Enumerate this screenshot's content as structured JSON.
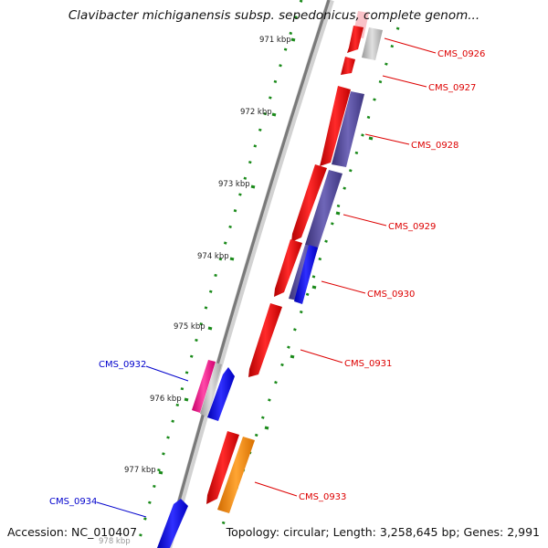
{
  "title": "Clavibacter michiganensis subsp. sepedonicus, complete genom...",
  "accession_text": "Accession: NC_010407",
  "topology_text": "Topology: circular; Length: 3,258,645 bp; Genes: 2,991",
  "colors": {
    "backbone": "#888888",
    "tick": "#1a8a1a",
    "gene_red": "#ff0000",
    "gene_purple": "#5a4fa0",
    "gene_blue": "#1010ff",
    "gene_gray": "#bdbdbd",
    "gene_pink": "#ff1a8c",
    "gene_orange": "#ff8c00",
    "label_red": "#dd0000",
    "label_blue": "#0000cc"
  },
  "ruler": {
    "labels": [
      "971 kbp",
      "972 kbp",
      "973 kbp",
      "974 kbp",
      "975 kbp",
      "976 kbp",
      "977 kbp",
      "978 kbp"
    ]
  },
  "gene_labels": [
    {
      "name": "CMS_0926",
      "side": "right"
    },
    {
      "name": "CMS_0927",
      "side": "right"
    },
    {
      "name": "CMS_0928",
      "side": "right"
    },
    {
      "name": "CMS_0929",
      "side": "right"
    },
    {
      "name": "CMS_0930",
      "side": "right"
    },
    {
      "name": "CMS_0931",
      "side": "right"
    },
    {
      "name": "CMS_0932",
      "side": "left"
    },
    {
      "name": "CMS_0933",
      "side": "right"
    },
    {
      "name": "CMS_0934",
      "side": "left"
    }
  ]
}
